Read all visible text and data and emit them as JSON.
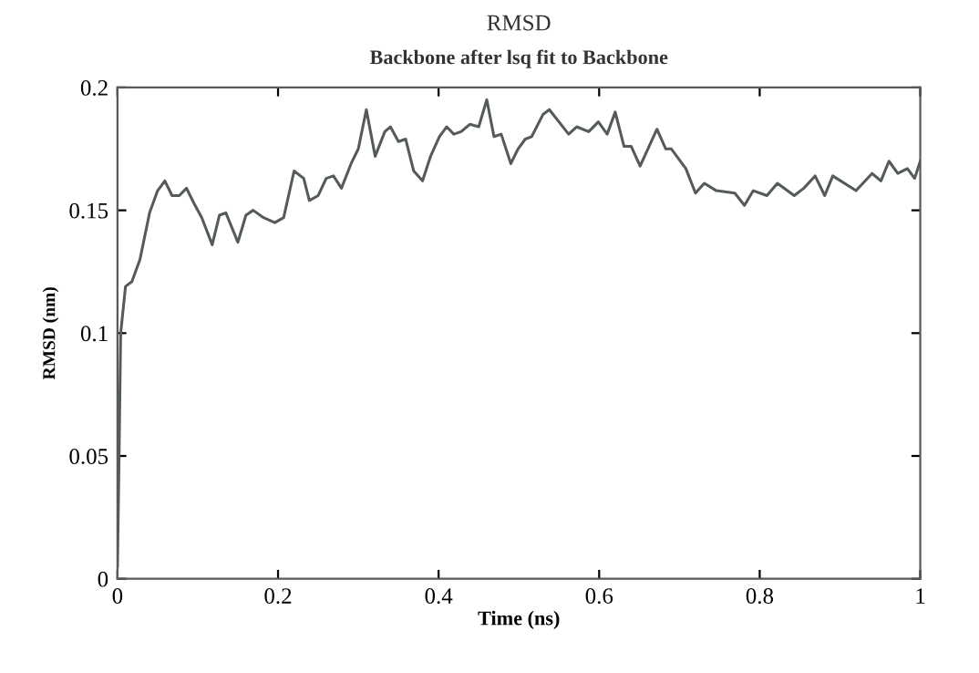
{
  "chart_data": {
    "type": "line",
    "title": "RMSD",
    "subtitle": "Backbone after lsq fit to Backbone",
    "xlabel": "Time (ns)",
    "ylabel": "RMSD (nm)",
    "x": [
      0,
      0.002,
      0.004,
      0.01,
      0.018,
      0.028,
      0.04,
      0.05,
      0.059,
      0.068,
      0.077,
      0.086,
      0.095,
      0.105,
      0.118,
      0.127,
      0.135,
      0.15,
      0.16,
      0.169,
      0.182,
      0.196,
      0.207,
      0.22,
      0.232,
      0.239,
      0.25,
      0.26,
      0.269,
      0.279,
      0.291,
      0.3,
      0.31,
      0.321,
      0.333,
      0.34,
      0.35,
      0.359,
      0.369,
      0.38,
      0.39,
      0.401,
      0.41,
      0.419,
      0.428,
      0.439,
      0.45,
      0.46,
      0.469,
      0.478,
      0.49,
      0.499,
      0.508,
      0.516,
      0.53,
      0.538,
      0.562,
      0.572,
      0.587,
      0.599,
      0.61,
      0.62,
      0.631,
      0.64,
      0.651,
      0.672,
      0.683,
      0.69,
      0.708,
      0.72,
      0.731,
      0.746,
      0.769,
      0.781,
      0.792,
      0.809,
      0.822,
      0.843,
      0.855,
      0.869,
      0.881,
      0.891,
      0.92,
      0.94,
      0.951,
      0.961,
      0.972,
      0.984,
      0.993,
      1.0
    ],
    "series": [
      {
        "color": "#555a5a",
        "values": [
          0.005,
          0.05,
          0.1,
          0.119,
          0.121,
          0.13,
          0.149,
          0.158,
          0.162,
          0.156,
          0.156,
          0.159,
          0.153,
          0.147,
          0.136,
          0.148,
          0.149,
          0.137,
          0.148,
          0.15,
          0.147,
          0.145,
          0.147,
          0.166,
          0.163,
          0.154,
          0.156,
          0.163,
          0.164,
          0.159,
          0.169,
          0.175,
          0.191,
          0.172,
          0.182,
          0.184,
          0.178,
          0.179,
          0.166,
          0.162,
          0.172,
          0.18,
          0.184,
          0.181,
          0.182,
          0.185,
          0.184,
          0.195,
          0.18,
          0.181,
          0.169,
          0.175,
          0.179,
          0.18,
          0.189,
          0.191,
          0.181,
          0.184,
          0.182,
          0.186,
          0.181,
          0.19,
          0.176,
          0.176,
          0.168,
          0.183,
          0.175,
          0.175,
          0.167,
          0.157,
          0.161,
          0.158,
          0.157,
          0.152,
          0.158,
          0.156,
          0.161,
          0.156,
          0.159,
          0.164,
          0.156,
          0.164,
          0.158,
          0.165,
          0.162,
          0.17,
          0.165,
          0.167,
          0.163,
          0.17
        ]
      }
    ],
    "xlim": [
      0,
      1
    ],
    "ylim": [
      0,
      0.2
    ],
    "xticks": [
      0,
      0.2,
      0.4,
      0.6,
      0.8,
      1
    ],
    "yticks": [
      0,
      0.05,
      0.1,
      0.15,
      0.2
    ],
    "grid": false,
    "marker": "none",
    "line_style": "solid"
  }
}
